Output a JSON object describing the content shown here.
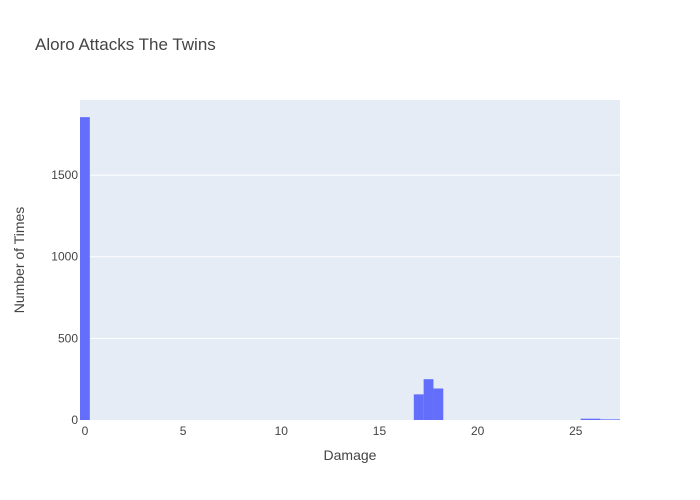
{
  "chart_data": {
    "type": "bar",
    "title": "Aloro Attacks The Twins",
    "xlabel": "Damage",
    "ylabel": "Number of Times",
    "xlim": [
      -0.25,
      27.25
    ],
    "ylim": [
      0,
      1960
    ],
    "x_ticks": [
      0,
      5,
      10,
      15,
      20,
      25
    ],
    "y_ticks": [
      0,
      500,
      1000,
      1500
    ],
    "bin_width": 0.5,
    "series": [
      {
        "bins": [
          {
            "start": -0.25,
            "end": 0.25,
            "count": 1855
          },
          {
            "start": 16.75,
            "end": 17.25,
            "count": 157
          },
          {
            "start": 17.25,
            "end": 17.75,
            "count": 250
          },
          {
            "start": 17.75,
            "end": 18.25,
            "count": 193
          },
          {
            "start": 25.25,
            "end": 25.75,
            "count": 8
          },
          {
            "start": 25.75,
            "end": 26.25,
            "count": 8
          },
          {
            "start": 26.25,
            "end": 26.75,
            "count": 4
          },
          {
            "start": 26.75,
            "end": 27.25,
            "count": 4
          }
        ]
      }
    ],
    "grid": true,
    "colors": {
      "bar": "#636efa",
      "plot_background": "#e5ecf6",
      "grid": "#ffffff",
      "text": "#444444"
    }
  }
}
